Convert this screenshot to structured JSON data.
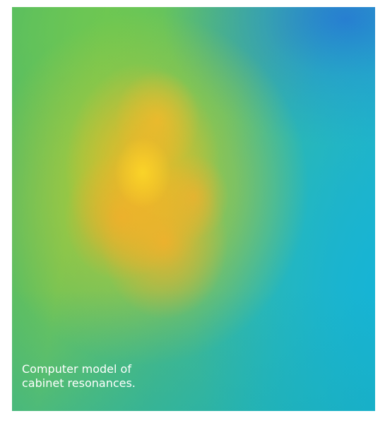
{
  "caption": {
    "line1": "Computer model of",
    "line2": "cabinet resonances."
  },
  "colors": {
    "green": "#4cb86a",
    "teal": "#2fb7b0",
    "cyan": "#20b2cf",
    "blue": "#2878d2",
    "orange": "#f5b428",
    "yellow": "#fad728"
  }
}
